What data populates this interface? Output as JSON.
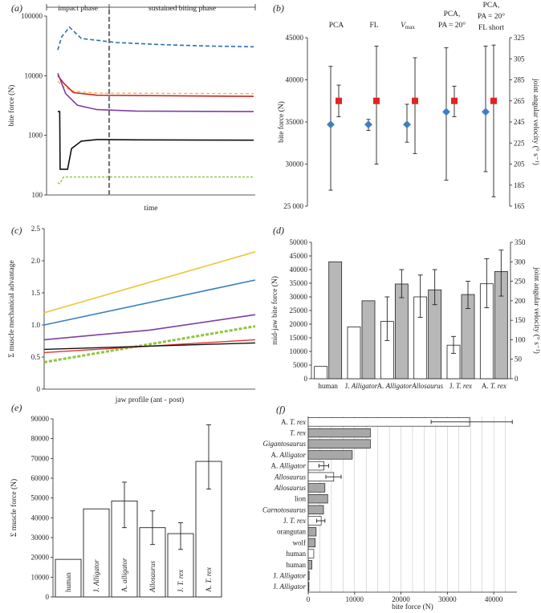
{
  "chart_data": [
    {
      "panel": "(a)",
      "type": "line",
      "ylabel": "bite force (N)",
      "xlabel": "time",
      "yscale": "log",
      "yticks": [
        "100",
        "1000",
        "10000",
        "100000"
      ],
      "phase_labels": [
        "impact phase",
        "sustained biting phase"
      ],
      "series": [
        {
          "color": "#2f6fb0",
          "dash": "5,3",
          "width": 1.6,
          "points": [
            [
              0,
              27000
            ],
            [
              0.02,
              45000
            ],
            [
              0.06,
              65000
            ],
            [
              0.12,
              42000
            ],
            [
              0.3,
              36000
            ],
            [
              0.5,
              33500
            ],
            [
              0.75,
              31500
            ],
            [
              1,
              30500
            ]
          ]
        },
        {
          "color": "#f0b63c",
          "dash": "4,3",
          "width": 1.4,
          "points": [
            [
              0,
              8000
            ],
            [
              0.03,
              6500
            ],
            [
              0.08,
              5500
            ],
            [
              0.2,
              5100
            ],
            [
              1,
              5000
            ]
          ]
        },
        {
          "color": "#c22",
          "dash": "",
          "width": 1.6,
          "points": [
            [
              0,
              10000
            ],
            [
              0.03,
              7500
            ],
            [
              0.08,
              5200
            ],
            [
              0.2,
              4700
            ],
            [
              1,
              4500
            ]
          ]
        },
        {
          "color": "#7e3fa0",
          "dash": "",
          "width": 1.6,
          "points": [
            [
              0,
              11000
            ],
            [
              0.04,
              5000
            ],
            [
              0.1,
              3200
            ],
            [
              0.2,
              2700
            ],
            [
              0.4,
              2550
            ],
            [
              1,
              2500
            ]
          ]
        },
        {
          "color": "#111",
          "dash": "",
          "width": 1.6,
          "points": [
            [
              0,
              2500
            ],
            [
              0.01,
              2500
            ],
            [
              0.012,
              270
            ],
            [
              0.05,
              270
            ],
            [
              0.07,
              600
            ],
            [
              0.12,
              800
            ],
            [
              0.2,
              850
            ],
            [
              0.4,
              840
            ],
            [
              1,
              830
            ]
          ]
        },
        {
          "color": "#8cc63f",
          "dash": "3,2",
          "width": 1.4,
          "points": [
            [
              0,
              160
            ],
            [
              0.01,
              155
            ],
            [
              0.03,
              200
            ],
            [
              0.1,
              200
            ],
            [
              1,
              200
            ]
          ]
        }
      ]
    },
    {
      "panel": "(b)",
      "type": "scatter",
      "ylabel": "bite force (N)",
      "y2label": "joint angular velocity (° s⁻¹)",
      "ylim": [
        25000,
        45000
      ],
      "yticks": [
        "25 000",
        "30000",
        "35000",
        "40000",
        "45000"
      ],
      "y2lim": [
        165,
        325
      ],
      "y2ticks": [
        "165",
        "185",
        "205",
        "225",
        "245",
        "265",
        "285",
        "305",
        "325"
      ],
      "categories": [
        {
          "lines": [
            "PCA"
          ],
          "italic": [
            false
          ]
        },
        {
          "lines": [
            "FL"
          ],
          "italic": [
            false
          ]
        },
        {
          "lines": [
            "V",
            "max"
          ],
          "italic": [
            true,
            false
          ]
        },
        {
          "lines": [
            "PCA,",
            "PA = 20°"
          ],
          "italic": [
            false,
            false
          ]
        },
        {
          "lines": [
            "PCA,",
            "PA = 20°",
            "FL short"
          ],
          "italic": [
            false,
            false,
            false
          ]
        }
      ],
      "series": [
        {
          "name": "bite force",
          "color": "#3d7fc4",
          "values": [
            34700,
            34700,
            34700,
            36200,
            36200
          ],
          "err_low": [
            26900,
            34000,
            32600,
            28100,
            29100
          ],
          "err_high": [
            41600,
            35300,
            37100,
            43800,
            44000
          ]
        },
        {
          "name": "joint angular velocity",
          "color": "#e02424",
          "values": [
            265,
            265,
            265,
            265,
            265
          ],
          "err_low": [
            250,
            205,
            215,
            250,
            174
          ],
          "err_high": [
            280,
            317,
            306,
            279,
            318
          ]
        }
      ]
    },
    {
      "panel": "(c)",
      "type": "line",
      "ylabel": "Σ muscle mechanical advantage",
      "xlabel": "jaw profile (ant - post)",
      "ylim": [
        0,
        2.5
      ],
      "yticks": [
        "0",
        "0.5",
        "1.0",
        "1.5",
        "2.0",
        "2.5"
      ],
      "series": [
        {
          "color": "#f0c43c",
          "dash": "",
          "width": 1.6,
          "points": [
            [
              0,
              1.19
            ],
            [
              1,
              2.14
            ]
          ]
        },
        {
          "color": "#3a7fc0",
          "dash": "",
          "width": 1.6,
          "points": [
            [
              0,
              1.0
            ],
            [
              1,
              1.7
            ]
          ]
        },
        {
          "color": "#7e3fa0",
          "dash": "",
          "width": 1.6,
          "points": [
            [
              0,
              0.77
            ],
            [
              0.5,
              0.92
            ],
            [
              1,
              1.16
            ]
          ]
        },
        {
          "color": "#8cc63f",
          "dash": "4,2",
          "width": 3,
          "points": [
            [
              0,
              0.42
            ],
            [
              1,
              0.98
            ]
          ]
        },
        {
          "color": "#e03434",
          "dash": "",
          "width": 1.4,
          "points": [
            [
              0,
              0.57
            ],
            [
              1,
              0.77
            ]
          ]
        },
        {
          "color": "#111",
          "dash": "",
          "width": 1.4,
          "points": [
            [
              0,
              0.62
            ],
            [
              1,
              0.72
            ]
          ]
        }
      ]
    },
    {
      "panel": "(d)",
      "type": "bar",
      "ylabel": "mid-jaw bite force (N)",
      "y2label": "joint angular velocity (° s⁻¹)",
      "ylim": [
        0,
        50000
      ],
      "yticks": [
        "0",
        "5000",
        "10000",
        "15000",
        "20000",
        "25000",
        "30000",
        "35000",
        "40000",
        "45000",
        "50000"
      ],
      "y2lim": [
        0,
        350
      ],
      "y2ticks": [
        "0",
        "50",
        "100",
        "150",
        "200",
        "250",
        "300",
        "350"
      ],
      "categories": [
        {
          "parts": [
            {
              "t": "human",
              "i": false
            }
          ]
        },
        {
          "parts": [
            {
              "t": "J. ",
              "i": false
            },
            {
              "t": "Alligator",
              "i": true
            }
          ]
        },
        {
          "parts": [
            {
              "t": "A. ",
              "i": false
            },
            {
              "t": "Alligator",
              "i": true
            }
          ]
        },
        {
          "parts": [
            {
              "t": "Allosaurus",
              "i": true
            }
          ]
        },
        {
          "parts": [
            {
              "t": "J. ",
              "i": false
            },
            {
              "t": "T. rex",
              "i": true
            }
          ]
        },
        {
          "parts": [
            {
              "t": "A. ",
              "i": false
            },
            {
              "t": "T. rex",
              "i": true
            }
          ]
        }
      ],
      "series": [
        {
          "name": "bite force",
          "fill": "#ffffff",
          "values": [
            4500,
            19000,
            21000,
            30000,
            12300,
            34800
          ],
          "err_low": [
            null,
            null,
            14000,
            22500,
            9300,
            26000
          ],
          "err_high": [
            null,
            null,
            30000,
            38000,
            15500,
            44000
          ]
        },
        {
          "name": "joint angular velocity",
          "fill": "#b7b7b7",
          "values": [
            300,
            200,
            243,
            228,
            216,
            275
          ],
          "err_low": [
            null,
            null,
            208,
            190,
            180,
            212
          ],
          "err_high": [
            null,
            null,
            280,
            280,
            250,
            330
          ]
        }
      ]
    },
    {
      "panel": "(e)",
      "type": "bar",
      "ylabel": "Σ muscle force (N)",
      "ylim": [
        0,
        90000
      ],
      "yticks": [
        "0",
        "10000",
        "20000",
        "30000",
        "40000",
        "50000",
        "60000",
        "70000",
        "80000",
        "90000"
      ],
      "categories": [
        {
          "parts": [
            {
              "t": "human",
              "i": false
            }
          ]
        },
        {
          "parts": [
            {
              "t": "J. ",
              "i": false
            },
            {
              "t": "Alligator",
              "i": true
            }
          ]
        },
        {
          "parts": [
            {
              "t": "A. ",
              "i": false
            },
            {
              "t": "alligator",
              "i": true
            }
          ]
        },
        {
          "parts": [
            {
              "t": "Allosaurus",
              "i": true
            }
          ]
        },
        {
          "parts": [
            {
              "t": "J. ",
              "i": false
            },
            {
              "t": "T. rex",
              "i": true
            }
          ]
        },
        {
          "parts": [
            {
              "t": "A. ",
              "i": false
            },
            {
              "t": "T. rex",
              "i": true
            }
          ]
        }
      ],
      "values": [
        19000,
        44500,
        48500,
        35000,
        32000,
        68500
      ],
      "err_low": [
        null,
        null,
        35000,
        26500,
        24000,
        54500
      ],
      "err_high": [
        null,
        null,
        58000,
        43500,
        37500,
        87000
      ]
    },
    {
      "panel": "(f)",
      "type": "bar",
      "orientation": "horizontal",
      "xlabel": "bite force (N)",
      "xlim": [
        0,
        45000
      ],
      "xticks": [
        "0",
        "10000",
        "20000",
        "30000",
        "40000"
      ],
      "categories": [
        {
          "parts": [
            {
              "t": "A. ",
              "i": false
            },
            {
              "t": "T. rex",
              "i": true
            }
          ]
        },
        {
          "parts": [
            {
              "t": "T. rex",
              "i": true
            }
          ]
        },
        {
          "parts": [
            {
              "t": "Gigantosaurus",
              "i": true
            }
          ]
        },
        {
          "parts": [
            {
              "t": "A. ",
              "i": false
            },
            {
              "t": "Alligator",
              "i": true
            }
          ]
        },
        {
          "parts": [
            {
              "t": "A. ",
              "i": false
            },
            {
              "t": "Alligator",
              "i": true
            }
          ]
        },
        {
          "parts": [
            {
              "t": "Allosaurus",
              "i": true
            }
          ]
        },
        {
          "parts": [
            {
              "t": "Allosaurus",
              "i": true
            }
          ]
        },
        {
          "parts": [
            {
              "t": "lion",
              "i": false
            }
          ]
        },
        {
          "parts": [
            {
              "t": "Carnotosaurus",
              "i": true
            }
          ]
        },
        {
          "parts": [
            {
              "t": "J. ",
              "i": false
            },
            {
              "t": "T. rex",
              "i": true
            }
          ]
        },
        {
          "parts": [
            {
              "t": "orangutan",
              "i": false
            }
          ]
        },
        {
          "parts": [
            {
              "t": "wolf",
              "i": false
            }
          ]
        },
        {
          "parts": [
            {
              "t": "human",
              "i": false
            }
          ]
        },
        {
          "parts": [
            {
              "t": "human",
              "i": false
            }
          ]
        },
        {
          "parts": [
            {
              "t": "J. ",
              "i": false
            },
            {
              "t": "Alligator",
              "i": true
            }
          ]
        },
        {
          "parts": [
            {
              "t": "J. ",
              "i": false
            },
            {
              "t": "Alligator",
              "i": true
            }
          ]
        }
      ],
      "values": [
        34800,
        13400,
        13400,
        9500,
        3400,
        5500,
        3600,
        4200,
        3300,
        2800,
        1700,
        1500,
        1200,
        800,
        200,
        150
      ],
      "fills": [
        "#ffffff",
        "#a8a8a8",
        "#a8a8a8",
        "#a8a8a8",
        "#ffffff",
        "#ffffff",
        "#a8a8a8",
        "#a8a8a8",
        "#a8a8a8",
        "#ffffff",
        "#a8a8a8",
        "#a8a8a8",
        "#ffffff",
        "#a8a8a8",
        "#a8a8a8",
        "#a8a8a8"
      ],
      "err_low": [
        26500,
        null,
        null,
        null,
        2300,
        3800,
        null,
        null,
        null,
        1800,
        null,
        null,
        null,
        null,
        null,
        null
      ],
      "err_high": [
        44000,
        null,
        null,
        null,
        4400,
        7100,
        null,
        null,
        null,
        3600,
        null,
        null,
        null,
        null,
        null,
        null
      ]
    }
  ]
}
